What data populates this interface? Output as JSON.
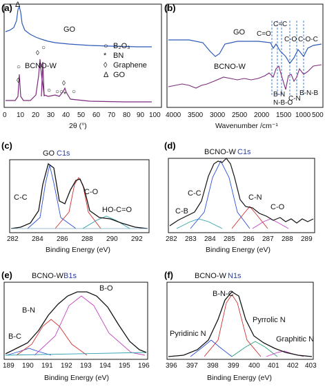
{
  "panels": {
    "a": {
      "label": "(a)",
      "xlabel": "2θ (°)",
      "x_ticks": [
        "0",
        "10",
        "20",
        "30",
        "40",
        "50",
        "60",
        "70",
        "80",
        "90",
        "100"
      ],
      "series_labels": {
        "go": "GO",
        "bcno": "BCNO-W"
      },
      "legend": [
        {
          "symbol": "○",
          "text": "B₂O₃"
        },
        {
          "symbol": "*",
          "text": "BN"
        },
        {
          "symbol": "◊",
          "text": "Graphene"
        },
        {
          "symbol": "Δ",
          "text": "GO"
        }
      ],
      "top_symbol": "Δ"
    },
    "b": {
      "label": "(b)",
      "xlabel": "Wavenumber /cm⁻¹",
      "x_ticks": [
        "4000",
        "3500",
        "3000",
        "2500",
        "2000",
        "1500",
        "1000",
        "500"
      ],
      "series_labels": {
        "go": "GO",
        "bcno": "BCNO-W"
      },
      "annotations": {
        "c_eq_o": "C=O",
        "c_eq_c": "C=C",
        "c_o_c": "C-O-C",
        "c_o": "C-O",
        "b_n_b": "B-N-B",
        "b_n": "B-N",
        "c_n": "C-N",
        "n_b_o": "N-B-O"
      }
    },
    "c": {
      "label": "(c)",
      "title": "GO",
      "title_blue": "C1s",
      "xlabel": "Binding Energy (eV)",
      "x_ticks": [
        "282",
        "284",
        "286",
        "288",
        "290",
        "292"
      ],
      "peaks": [
        "C-C",
        "C-O",
        "HO-C=O"
      ]
    },
    "d": {
      "label": "(d)",
      "title": "BCNO-W",
      "title_blue": "C1s",
      "xlabel": "Binding Energy (eV)",
      "x_ticks": [
        "282",
        "283",
        "284",
        "285",
        "286",
        "287",
        "288",
        "289"
      ],
      "peaks": [
        "C-B",
        "C-C",
        "C-N",
        "C-O"
      ]
    },
    "e": {
      "label": "(e)",
      "title": "BCNO-W",
      "title_blue": "B1s",
      "xlabel": "Binding Energy (eV)",
      "x_ticks": [
        "189",
        "190",
        "191",
        "192",
        "193",
        "194",
        "195",
        "196"
      ],
      "peaks": [
        "B-C",
        "B-N",
        "B-O"
      ]
    },
    "f": {
      "label": "(f)",
      "title": "BCNO-W",
      "title_blue": "N1s",
      "xlabel": "Binding Energy (eV)",
      "x_ticks": [
        "396",
        "397",
        "398",
        "399",
        "400",
        "401",
        "402",
        "403"
      ],
      "peaks": [
        "Pyridinic N",
        "B-N-C",
        "Pyrrolic N",
        "Graphitic N"
      ]
    }
  }
}
